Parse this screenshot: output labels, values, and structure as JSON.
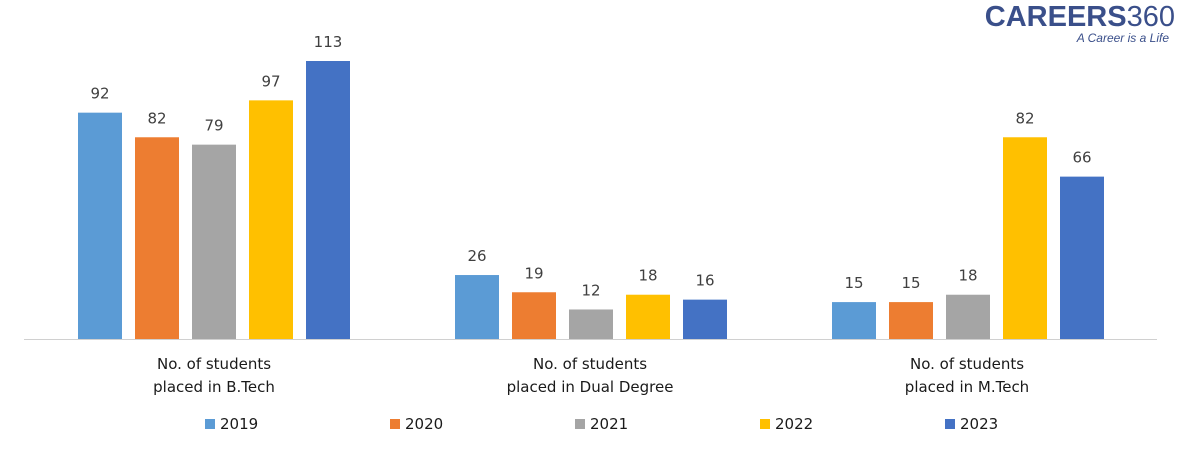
{
  "logo": {
    "brand": "CAREERS",
    "brand_number": "360",
    "tagline": "A Career is a Life"
  },
  "chart_data": {
    "type": "bar",
    "categories": [
      [
        "No. of students",
        "placed in B.Tech"
      ],
      [
        "No. of students",
        "placed in Dual Degree"
      ],
      [
        "No. of students",
        "placed in M.Tech"
      ]
    ],
    "series": [
      {
        "name": "2019",
        "color": "#5b9bd5",
        "values": [
          92,
          26,
          15
        ]
      },
      {
        "name": "2020",
        "color": "#ed7d31",
        "values": [
          82,
          19,
          15
        ]
      },
      {
        "name": "2021",
        "color": "#a5a5a5",
        "values": [
          79,
          12,
          18
        ]
      },
      {
        "name": "2022",
        "color": "#ffc000",
        "values": [
          97,
          18,
          82
        ]
      },
      {
        "name": "2023",
        "color": "#4472c4",
        "values": [
          113,
          16,
          66
        ]
      }
    ],
    "ylim": [
      0,
      113
    ],
    "grid": false,
    "legend": "bottom",
    "data_labels": true
  }
}
